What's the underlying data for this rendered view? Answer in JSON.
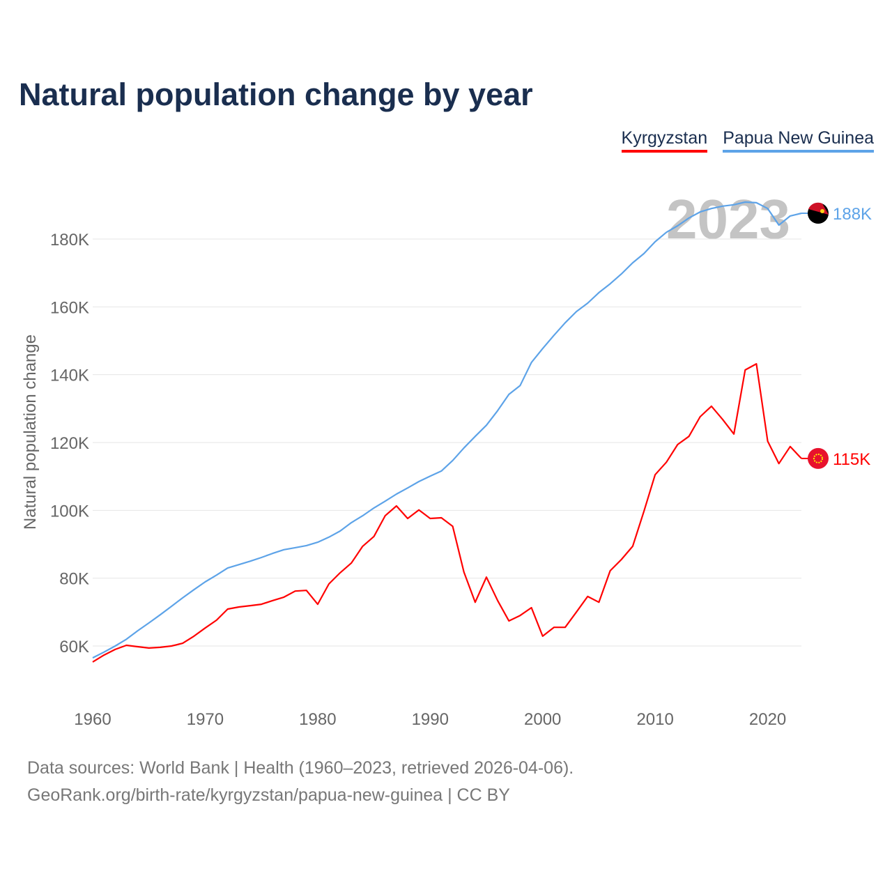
{
  "chart_data": {
    "type": "line",
    "title": "Natural population change by year",
    "xlabel": "",
    "ylabel": "Natural population change",
    "xlim": [
      1960,
      2023
    ],
    "ylim": [
      50000,
      195000
    ],
    "x_ticks": [
      1960,
      1970,
      1980,
      1990,
      2000,
      2010,
      2020
    ],
    "y_ticks": [
      60000,
      80000,
      100000,
      120000,
      140000,
      160000,
      180000
    ],
    "y_tick_labels": [
      "60K",
      "80K",
      "100K",
      "120K",
      "140K",
      "160K",
      "180K"
    ],
    "grid": true,
    "legend_position": "top-right",
    "watermark_year": "2023",
    "x": [
      1960,
      1961,
      1962,
      1963,
      1964,
      1965,
      1966,
      1967,
      1968,
      1969,
      1970,
      1971,
      1972,
      1973,
      1974,
      1975,
      1976,
      1977,
      1978,
      1979,
      1980,
      1981,
      1982,
      1983,
      1984,
      1985,
      1986,
      1987,
      1988,
      1989,
      1990,
      1991,
      1992,
      1993,
      1994,
      1995,
      1996,
      1997,
      1998,
      1999,
      2000,
      2001,
      2002,
      2003,
      2004,
      2005,
      2006,
      2007,
      2008,
      2009,
      2010,
      2011,
      2012,
      2013,
      2014,
      2015,
      2016,
      2017,
      2018,
      2019,
      2020,
      2021,
      2022,
      2023
    ],
    "series": [
      {
        "name": "Kyrgyzstan",
        "color": "#ff0000",
        "end_label": "115K",
        "values": [
          55300,
          57300,
          59000,
          60200,
          59800,
          59400,
          59600,
          60000,
          60800,
          62900,
          65300,
          67600,
          70900,
          71500,
          71900,
          72300,
          73400,
          74400,
          76200,
          76400,
          72300,
          78300,
          81600,
          84500,
          89400,
          92300,
          98400,
          101300,
          97600,
          100100,
          97600,
          97800,
          95300,
          81800,
          72900,
          80300,
          73400,
          67400,
          69000,
          71300,
          62900,
          65500,
          65500,
          70000,
          74600,
          72900,
          82200,
          85500,
          89400,
          99700,
          110500,
          114200,
          119400,
          121800,
          127600,
          130700,
          126800,
          122500,
          141400,
          143200,
          120400,
          113800,
          118800,
          115300
        ]
      },
      {
        "name": "Papua New Guinea",
        "color": "#5da3e8",
        "end_label": "188K",
        "values": [
          56500,
          58200,
          60000,
          62000,
          64500,
          66800,
          69200,
          71700,
          74200,
          76600,
          78900,
          80900,
          83000,
          84000,
          85000,
          86100,
          87300,
          88400,
          89000,
          89600,
          90600,
          92100,
          93900,
          96400,
          98400,
          100700,
          102700,
          104800,
          106600,
          108500,
          110100,
          111600,
          114700,
          118400,
          121800,
          125100,
          129400,
          134200,
          136800,
          143600,
          147700,
          151600,
          155300,
          158600,
          161100,
          164200,
          166800,
          169700,
          173000,
          175700,
          179200,
          182000,
          183900,
          186200,
          188000,
          189000,
          189700,
          190100,
          190900,
          190700,
          189000,
          184100,
          186800,
          187600
        ]
      }
    ]
  },
  "footer": {
    "line1": "Data sources: World Bank | Health (1960–2023, retrieved 2026-04-06).",
    "line2": "GeoRank.org/birth-rate/kyrgyzstan/papua-new-guinea | CC BY"
  }
}
